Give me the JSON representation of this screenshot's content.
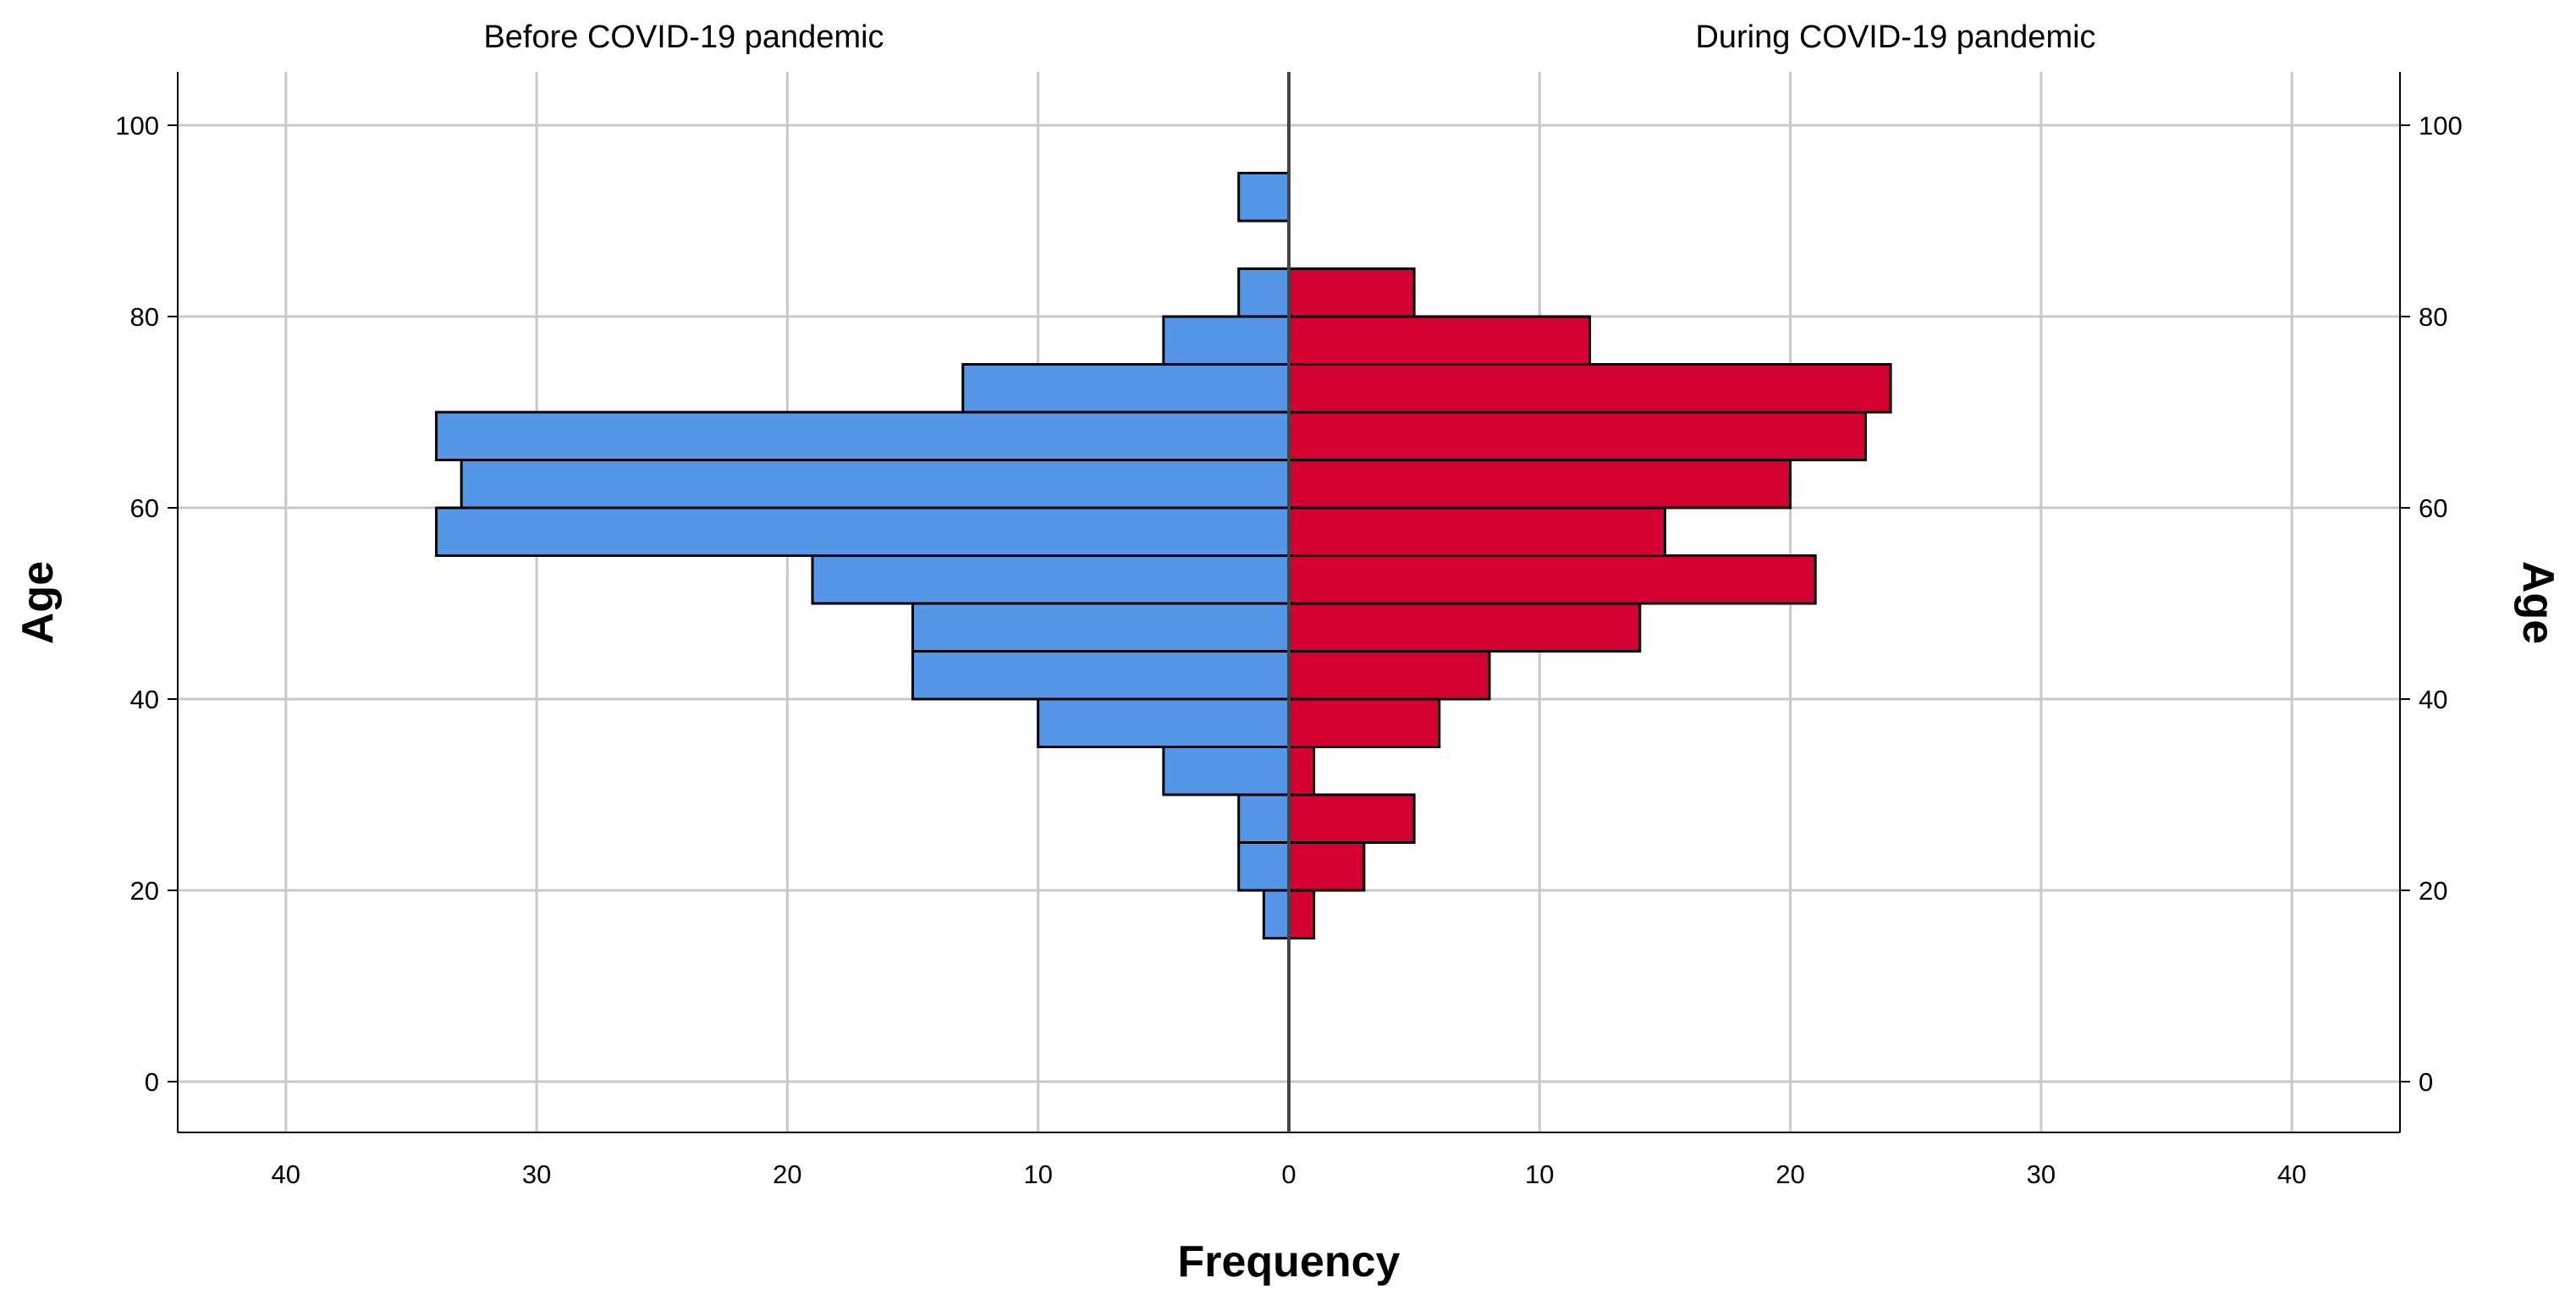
{
  "chart_data": {
    "type": "bar",
    "title": "",
    "subtype": "population-pyramid",
    "bin_width": 5,
    "y_label": "Age",
    "x_label": "Frequency",
    "x_ticks_left": [
      40,
      30,
      20,
      10,
      0
    ],
    "x_ticks_right": [
      0,
      10,
      20,
      30,
      40
    ],
    "y_ticks": [
      0,
      20,
      40,
      60,
      80,
      100
    ],
    "x_range": [
      0,
      44.5
    ],
    "y_range": [
      -5,
      105
    ],
    "grid": true,
    "series": [
      {
        "name": "Before COVID-19 pandemic",
        "side": "left",
        "color": "#5596e6",
        "bins": [
          {
            "age_from": 15,
            "age_to": 20,
            "value": 1
          },
          {
            "age_from": 20,
            "age_to": 25,
            "value": 2
          },
          {
            "age_from": 25,
            "age_to": 30,
            "value": 2
          },
          {
            "age_from": 30,
            "age_to": 35,
            "value": 5
          },
          {
            "age_from": 35,
            "age_to": 40,
            "value": 10
          },
          {
            "age_from": 40,
            "age_to": 45,
            "value": 15
          },
          {
            "age_from": 45,
            "age_to": 50,
            "value": 15
          },
          {
            "age_from": 50,
            "age_to": 55,
            "value": 19
          },
          {
            "age_from": 55,
            "age_to": 60,
            "value": 34
          },
          {
            "age_from": 60,
            "age_to": 65,
            "value": 33
          },
          {
            "age_from": 65,
            "age_to": 70,
            "value": 34
          },
          {
            "age_from": 70,
            "age_to": 75,
            "value": 13
          },
          {
            "age_from": 75,
            "age_to": 80,
            "value": 5
          },
          {
            "age_from": 80,
            "age_to": 85,
            "value": 2
          },
          {
            "age_from": 85,
            "age_to": 90,
            "value": 0
          },
          {
            "age_from": 90,
            "age_to": 95,
            "value": 2
          }
        ]
      },
      {
        "name": "During COVID-19 pandemic",
        "side": "right",
        "color": "#d50032",
        "bins": [
          {
            "age_from": 15,
            "age_to": 20,
            "value": 1
          },
          {
            "age_from": 20,
            "age_to": 25,
            "value": 3
          },
          {
            "age_from": 25,
            "age_to": 30,
            "value": 5
          },
          {
            "age_from": 30,
            "age_to": 35,
            "value": 1
          },
          {
            "age_from": 35,
            "age_to": 40,
            "value": 6
          },
          {
            "age_from": 40,
            "age_to": 45,
            "value": 8
          },
          {
            "age_from": 45,
            "age_to": 50,
            "value": 14
          },
          {
            "age_from": 50,
            "age_to": 55,
            "value": 21
          },
          {
            "age_from": 55,
            "age_to": 60,
            "value": 15
          },
          {
            "age_from": 60,
            "age_to": 65,
            "value": 20
          },
          {
            "age_from": 65,
            "age_to": 70,
            "value": 23
          },
          {
            "age_from": 70,
            "age_to": 75,
            "value": 24
          },
          {
            "age_from": 75,
            "age_to": 80,
            "value": 12
          },
          {
            "age_from": 80,
            "age_to": 85,
            "value": 5
          }
        ]
      }
    ]
  }
}
